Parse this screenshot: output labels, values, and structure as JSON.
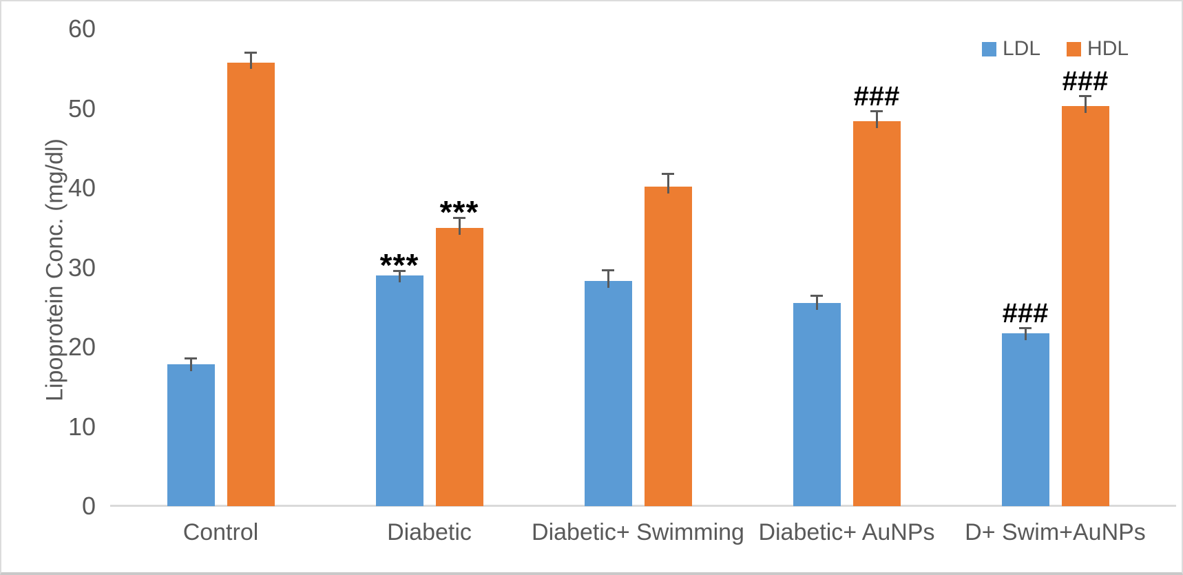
{
  "figure": {
    "background": "#ffffff",
    "border_color": "#dcdcdc",
    "text_color": "#595959",
    "axis_line_color": "#d9d9d9",
    "error_bar_color": "#595959",
    "annotation_color": "#000000"
  },
  "chart_data": {
    "type": "bar",
    "title": "",
    "xlabel": "",
    "ylabel": "Lipoprotein Conc. (mg/dl)",
    "ylim": [
      0,
      60
    ],
    "yticks": [
      0,
      10,
      20,
      30,
      40,
      50,
      60
    ],
    "grid": false,
    "legend_position": "top-right",
    "categories": [
      "Control",
      "Diabetic",
      "Diabetic+ Swimming",
      "Diabetic+ AuNPs",
      "D+ Swim+AuNPs"
    ],
    "series": [
      {
        "name": "LDL",
        "color": "#5B9BD5",
        "values": [
          17.8,
          29.0,
          28.3,
          25.5,
          21.7
        ],
        "error_plus": [
          0.9,
          0.7,
          1.5,
          1.1,
          0.8
        ],
        "annotations": [
          "",
          "***",
          "",
          "",
          "###"
        ]
      },
      {
        "name": "HDL",
        "color": "#ED7D31",
        "values": [
          55.8,
          35.0,
          40.2,
          48.4,
          50.3
        ],
        "error_plus": [
          1.3,
          1.4,
          1.7,
          1.4,
          1.4
        ],
        "annotations": [
          "",
          "***",
          "",
          "###",
          "###"
        ]
      }
    ]
  }
}
